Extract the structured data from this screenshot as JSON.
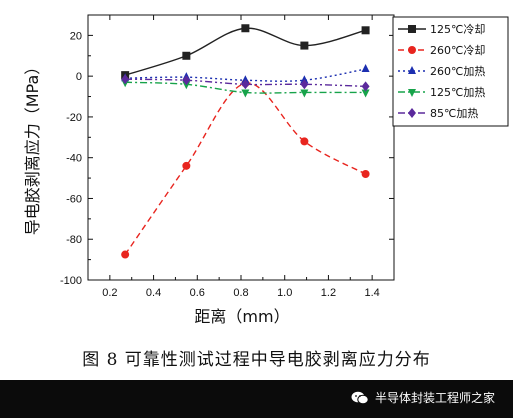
{
  "chart_data": {
    "type": "line",
    "xlabel": "距离（mm）",
    "ylabel": "导电胶剥离应力（MPa）",
    "xlim": [
      0.1,
      1.5
    ],
    "ylim": [
      -100,
      30
    ],
    "xticks": [
      0.2,
      0.4,
      0.6,
      0.8,
      1.0,
      1.2,
      1.4
    ],
    "yticks": [
      -100,
      -80,
      -60,
      -40,
      -20,
      0,
      20
    ],
    "x": [
      0.27,
      0.55,
      0.82,
      1.09,
      1.37
    ],
    "legend_position": "top-right",
    "series": [
      {
        "name": "125℃冷却",
        "color": "#222222",
        "marker": "square",
        "dash": "solid",
        "values": [
          0.5,
          10,
          23.5,
          15,
          22.5
        ]
      },
      {
        "name": "260℃冷却",
        "color": "#e8251f",
        "marker": "circle",
        "dash": "dashed",
        "values": [
          -87.5,
          -44,
          -3.5,
          -32,
          -48
        ]
      },
      {
        "name": "260℃加热",
        "color": "#1c2fb0",
        "marker": "triangle-up",
        "dash": "dotted",
        "values": [
          -1,
          -0.5,
          -2,
          -2,
          3.5
        ]
      },
      {
        "name": "125℃加热",
        "color": "#17a34a",
        "marker": "triangle-down",
        "dash": "dashdot",
        "values": [
          -3,
          -4,
          -8,
          -8,
          -8
        ]
      },
      {
        "name": "85℃加热",
        "color": "#5b2a9c",
        "marker": "diamond",
        "dash": "dashdotdot",
        "values": [
          -1.5,
          -2,
          -4,
          -4,
          -5
        ]
      }
    ]
  },
  "caption": "图 8    可靠性测试过程中导电胶剥离应力分布",
  "footer": {
    "brand": "半导体封装工程师之家"
  }
}
